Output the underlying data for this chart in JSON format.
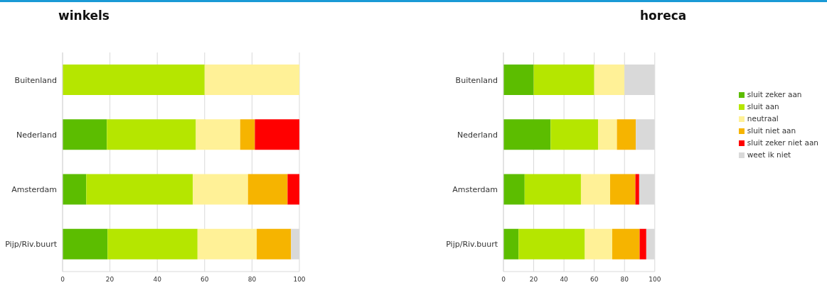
{
  "chart_data": [
    {
      "type": "bar",
      "title": "winkels",
      "orientation": "horizontal",
      "stacked": true,
      "categories": [
        "Buitenland",
        "Nederland",
        "Amsterdam",
        "Pijp/Riv.buurt"
      ],
      "series": [
        {
          "color": "#5cbd00",
          "values": [
            0,
            18.7,
            10,
            19
          ]
        },
        {
          "color": "#b5e600",
          "values": [
            60,
            37.6,
            45,
            38
          ]
        },
        {
          "color": "#fff197",
          "values": [
            40,
            18.7,
            23.3,
            25
          ]
        },
        {
          "color": "#f6b400",
          "values": [
            0,
            6.2,
            16.7,
            14.5
          ]
        },
        {
          "color": "#ff0000",
          "values": [
            0,
            18.8,
            5,
            0
          ]
        },
        {
          "color": "#d9d9d9",
          "values": [
            0,
            0,
            0,
            3.5
          ]
        }
      ],
      "xlim": [
        0,
        100
      ],
      "xticks": [
        0,
        20,
        40,
        60,
        80,
        100
      ],
      "grid": "x",
      "legend": false
    },
    {
      "type": "bar",
      "title": "horeca",
      "orientation": "horizontal",
      "stacked": true,
      "categories": [
        "Buitenland",
        "Nederland",
        "Amsterdam",
        "Pijp/Riv.buurt"
      ],
      "series": [
        {
          "name": "sluit zeker aan",
          "color": "#5cbd00",
          "values": [
            20,
            31.2,
            14,
            10
          ]
        },
        {
          "name": "sluit aan",
          "color": "#b5e600",
          "values": [
            40,
            31.3,
            37.2,
            43.8
          ]
        },
        {
          "name": "neutraal",
          "color": "#fff197",
          "values": [
            20,
            12.5,
            19.3,
            18.1
          ]
        },
        {
          "name": "sluit niet aan",
          "color": "#f6b400",
          "values": [
            0,
            12.5,
            16.7,
            18.1
          ]
        },
        {
          "name": "sluit zeker niet aan",
          "color": "#ff0000",
          "values": [
            0,
            0,
            2.5,
            4.4
          ]
        },
        {
          "name": "weet ik niet",
          "color": "#d9d9d9",
          "values": [
            20,
            12.5,
            10.3,
            5.6
          ]
        }
      ],
      "xlim": [
        0,
        100
      ],
      "xticks": [
        0,
        20,
        40,
        60,
        80,
        100
      ],
      "grid": "x",
      "legend": "right"
    }
  ]
}
